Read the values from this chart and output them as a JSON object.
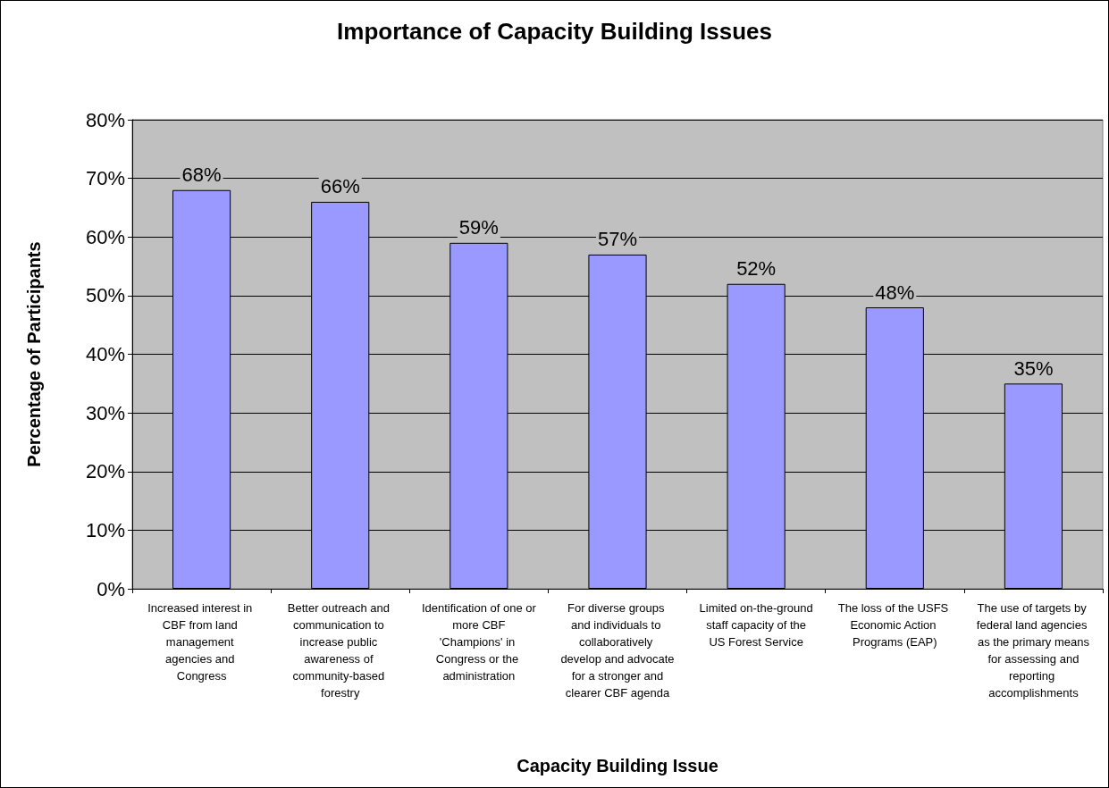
{
  "chart_data": {
    "type": "bar",
    "title": "Importance of Capacity Building Issues",
    "xlabel": "Capacity Building Issue",
    "ylabel": "Percentage of Participants",
    "categories": [
      "Increased interest in CBF from land management agencies and Congress",
      "Better outreach and communication to increase public awareness of community-based forestry",
      "Identification of one or more CBF 'Champions' in Congress or the administration",
      "For diverse groups and individuals to collaboratively develop and advocate for a stronger and clearer CBF agenda",
      "Limited on-the-ground staff capacity of the US Forest Service",
      "The loss of the USFS Economic Action Programs (EAP)",
      "The use of targets by federal land agencies as the primary means for assessing and reporting accomplishments"
    ],
    "values": [
      68,
      66,
      59,
      57,
      52,
      48,
      35
    ],
    "value_labels": [
      "68%",
      "66%",
      "59%",
      "57%",
      "52%",
      "48%",
      "35%"
    ],
    "color": "#9999ff",
    "ylim": [
      0,
      80
    ],
    "yticks": [
      {
        "value": 0,
        "label": "0%"
      },
      {
        "value": 10,
        "label": "10%"
      },
      {
        "value": 20,
        "label": "20%"
      },
      {
        "value": 30,
        "label": "30%"
      },
      {
        "value": 40,
        "label": "40%"
      },
      {
        "value": 50,
        "label": "50%"
      },
      {
        "value": 60,
        "label": "60%"
      },
      {
        "value": 70,
        "label": "70%"
      },
      {
        "value": 80,
        "label": "80%"
      }
    ],
    "grid": "y"
  }
}
